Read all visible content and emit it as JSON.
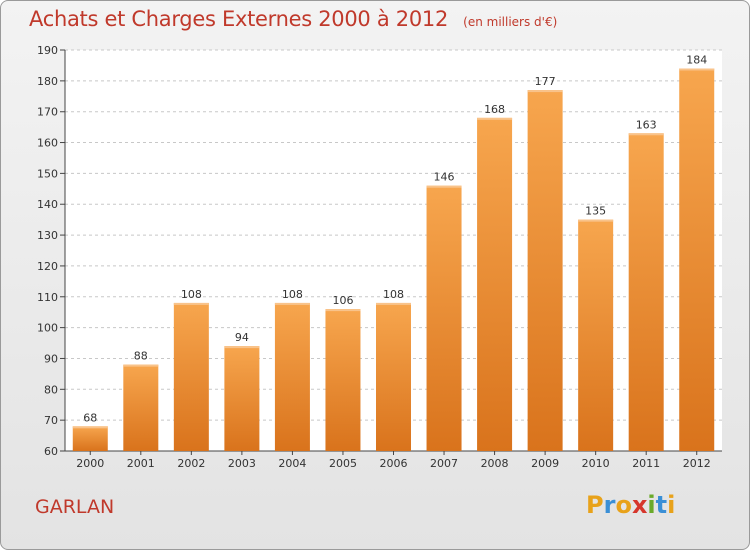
{
  "chart_data": {
    "type": "bar",
    "title": "Achats et Charges Externes 2000 à 2012",
    "subtitle": "(en milliers d'€)",
    "categories": [
      "2000",
      "2001",
      "2002",
      "2003",
      "2004",
      "2005",
      "2006",
      "2007",
      "2008",
      "2009",
      "2010",
      "2011",
      "2012"
    ],
    "values": [
      68,
      88,
      108,
      94,
      108,
      106,
      108,
      146,
      168,
      177,
      135,
      163,
      184
    ],
    "ylim": [
      60,
      190
    ],
    "yticks": [
      60,
      70,
      80,
      90,
      100,
      110,
      120,
      130,
      140,
      150,
      160,
      170,
      180,
      190
    ],
    "grid": true,
    "bar_color_top": "#f7a64e",
    "bar_color_bottom": "#d9731c"
  },
  "commune": "GARLAN",
  "logo": {
    "letters": [
      "P",
      "r",
      "o",
      "x",
      "i",
      "t",
      "i"
    ],
    "colors": [
      "#e8a21a",
      "#3a8fd6",
      "#e8a21a",
      "#d6362c",
      "#6aaa2a",
      "#3a8fd6",
      "#e8a21a"
    ]
  }
}
